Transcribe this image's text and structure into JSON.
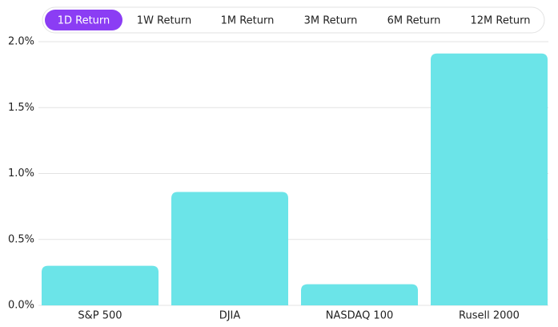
{
  "tabs": [
    "1D Return",
    "1W Return",
    "1M Return",
    "3M Return",
    "6M Return",
    "12M Return"
  ],
  "selected_tab": 0,
  "chart_data": {
    "type": "bar",
    "categories": [
      "S&P 500",
      "DJIA",
      "NASDAQ 100",
      "Rusell 2000"
    ],
    "values": [
      0.3,
      0.86,
      0.16,
      1.91
    ],
    "color": "#6be4e8",
    "ylim": [
      0,
      2.0
    ],
    "yticks": [
      {
        "value": 0,
        "label": "0.0%"
      },
      {
        "value": 0.5,
        "label": "0.5%"
      },
      {
        "value": 1.0,
        "label": "1.0%"
      },
      {
        "value": 1.5,
        "label": "1.5%"
      },
      {
        "value": 2.0,
        "label": "2.0%"
      }
    ],
    "grid": true
  }
}
